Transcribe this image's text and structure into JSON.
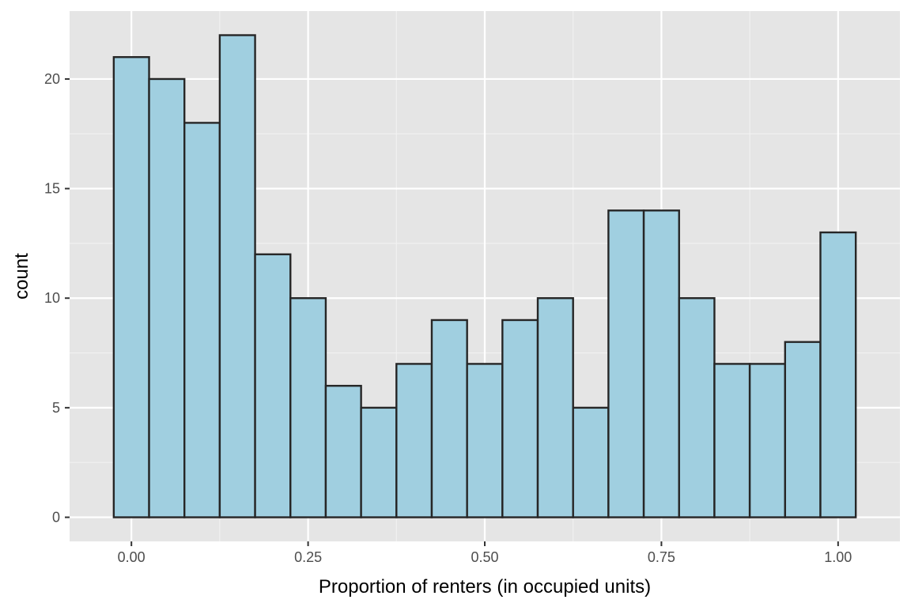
{
  "chart_data": {
    "type": "bar",
    "subtype": "histogram",
    "title": "",
    "xlabel": "Proportion of renters (in occupied units)",
    "ylabel": "count",
    "bin_width": 0.05,
    "bins": [
      {
        "x0": -0.025,
        "x1": 0.025,
        "count": 21
      },
      {
        "x0": 0.025,
        "x1": 0.075,
        "count": 20
      },
      {
        "x0": 0.075,
        "x1": 0.125,
        "count": 18
      },
      {
        "x0": 0.125,
        "x1": 0.175,
        "count": 22
      },
      {
        "x0": 0.175,
        "x1": 0.225,
        "count": 12
      },
      {
        "x0": 0.225,
        "x1": 0.275,
        "count": 10
      },
      {
        "x0": 0.275,
        "x1": 0.325,
        "count": 6
      },
      {
        "x0": 0.325,
        "x1": 0.375,
        "count": 5
      },
      {
        "x0": 0.375,
        "x1": 0.425,
        "count": 7
      },
      {
        "x0": 0.425,
        "x1": 0.475,
        "count": 9
      },
      {
        "x0": 0.475,
        "x1": 0.525,
        "count": 7
      },
      {
        "x0": 0.525,
        "x1": 0.575,
        "count": 9
      },
      {
        "x0": 0.575,
        "x1": 0.625,
        "count": 10
      },
      {
        "x0": 0.625,
        "x1": 0.675,
        "count": 5
      },
      {
        "x0": 0.675,
        "x1": 0.725,
        "count": 14
      },
      {
        "x0": 0.725,
        "x1": 0.775,
        "count": 14
      },
      {
        "x0": 0.775,
        "x1": 0.825,
        "count": 10
      },
      {
        "x0": 0.825,
        "x1": 0.875,
        "count": 7
      },
      {
        "x0": 0.875,
        "x1": 0.925,
        "count": 7
      },
      {
        "x0": 0.925,
        "x1": 0.975,
        "count": 8
      },
      {
        "x0": 0.975,
        "x1": 1.025,
        "count": 13
      }
    ],
    "xlim": [
      -0.0875,
      1.0875
    ],
    "ylim": [
      -1.1,
      23.1
    ],
    "x_ticks": [
      0,
      0.25,
      0.5,
      0.75,
      1
    ],
    "x_tick_labels": [
      "0.00",
      "0.25",
      "0.50",
      "0.75",
      "1.00"
    ],
    "y_ticks": [
      0,
      5,
      10,
      15,
      20
    ],
    "y_tick_labels": [
      "0",
      "5",
      "10",
      "15",
      "20"
    ],
    "grid": true,
    "legend": "none",
    "colors": {
      "panel_background": "#e5e5e5",
      "grid_major": "#ffffff",
      "grid_minor": "#f2f2f2",
      "bar_fill": "#a0cfe0",
      "bar_outline": "#262626",
      "tick_mark": "#333333",
      "tick_label": "#4d4d4d",
      "axis_title": "#000000"
    }
  }
}
